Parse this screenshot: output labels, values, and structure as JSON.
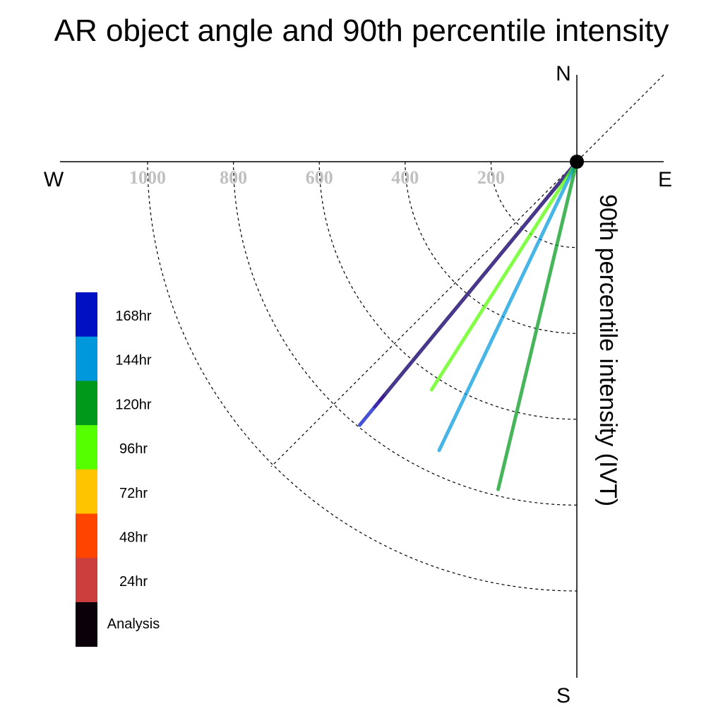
{
  "chart_data": {
    "type": "polar-line",
    "title": "AR object angle and 90th percentile intensity",
    "ylabel": "90th percentile intensity (IVT)",
    "compass": {
      "north": "N",
      "south": "S",
      "east": "E",
      "west": "W"
    },
    "rings": [
      200,
      400,
      600,
      800,
      1000
    ],
    "ring_labels": [
      "200",
      "400",
      "600",
      "800",
      "1000"
    ],
    "rmax": 1200,
    "legend": [
      {
        "label": "168hr",
        "color": "#0011c4"
      },
      {
        "label": "144hr",
        "color": "#0098dc"
      },
      {
        "label": "120hr",
        "color": "#00991a"
      },
      {
        "label": "96hr",
        "color": "#55ff00"
      },
      {
        "label": "72hr",
        "color": "#ffc400"
      },
      {
        "label": "48hr",
        "color": "#ff4400"
      },
      {
        "label": "24hr",
        "color": "#cc3d3d"
      },
      {
        "label": "Analysis",
        "color": "#0b0009"
      }
    ],
    "series": [
      {
        "name": "Analysis",
        "color": "#0b0009",
        "bearing": 219.5,
        "intensity": 720
      },
      {
        "name": "24hr",
        "color": "#cc3d3d",
        "bearing": 219.5,
        "intensity": 740
      },
      {
        "name": "48hr",
        "color": "#ff4400",
        "bearing": 219.5,
        "intensity": 715
      },
      {
        "name": "72hr",
        "color": "#ffc400",
        "bearing": 219.5,
        "intensity": 700
      },
      {
        "name": "168hr",
        "color": "#0011c4",
        "bearing": 219.5,
        "intensity": 795
      },
      {
        "name": "96hr",
        "color": "#55ff00",
        "bearing": 212.5,
        "intensity": 630
      },
      {
        "name": "144hr",
        "color": "#0098dc",
        "bearing": 205.5,
        "intensity": 745
      },
      {
        "name": "120hr",
        "color": "#00991a",
        "bearing": 193.5,
        "intensity": 785
      }
    ]
  }
}
